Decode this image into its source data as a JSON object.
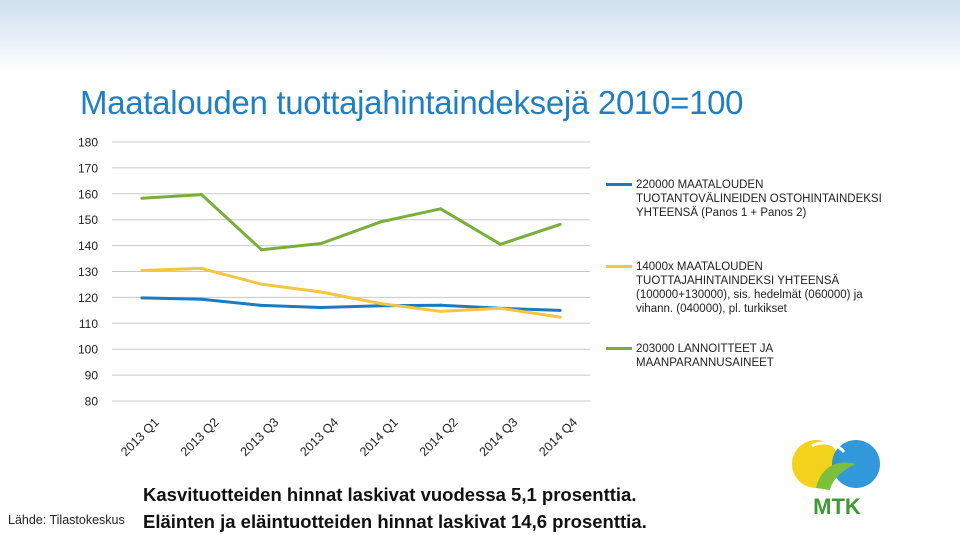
{
  "title": "Maatalouden tuottajahintaindeksejä 2010=100",
  "source": "Lähde: Tilastokeskus",
  "notes": [
    "Kasvituotteiden hinnat laskivat vuodessa 5,1 prosenttia.",
    "Eläinten ja eläintuotteiden hinnat laskivat 14,6 prosenttia."
  ],
  "logo_text": "MTK",
  "chart_data": {
    "type": "line",
    "title": "Maatalouden tuottajahintaindeksejä 2010=100",
    "xlabel": "",
    "ylabel": "",
    "categories": [
      "2013 Q1",
      "2013 Q2",
      "2013 Q3",
      "2013 Q4",
      "2014 Q1",
      "2014 Q2",
      "2014 Q3",
      "2014 Q4"
    ],
    "ylim": [
      80,
      180
    ],
    "yticks": [
      80,
      90,
      100,
      110,
      120,
      130,
      140,
      150,
      160,
      170,
      180
    ],
    "grid": true,
    "legend_position": "right",
    "series": [
      {
        "name": "220000 MAATALOUDEN TUOTANTOVÄLINEIDEN OSTOHINTAINDEKSI YHTEENSÄ (Panos 1 + Panos 2)",
        "color": "#1b7bc1",
        "values": [
          119.8,
          119.3,
          116.9,
          116.1,
          116.8,
          117.0,
          115.8,
          115.0
        ]
      },
      {
        "name": "14000x MAATALOUDEN TUOTTAJAHINTAINDEKSI YHTEENSÄ (100000+130000), sis. hedelmät (060000) ja vihann. (040000), pl. turkikset",
        "color": "#f4c542",
        "values": [
          130.4,
          131.2,
          125.1,
          122.1,
          117.6,
          114.6,
          115.8,
          112.4
        ]
      },
      {
        "name": "203000 LANNOITTEET JA MAANPARANNUSAINEET",
        "color": "#7aae3b",
        "values": [
          158.3,
          159.7,
          138.4,
          140.8,
          149.2,
          154.2,
          140.5,
          148.2
        ]
      }
    ]
  }
}
